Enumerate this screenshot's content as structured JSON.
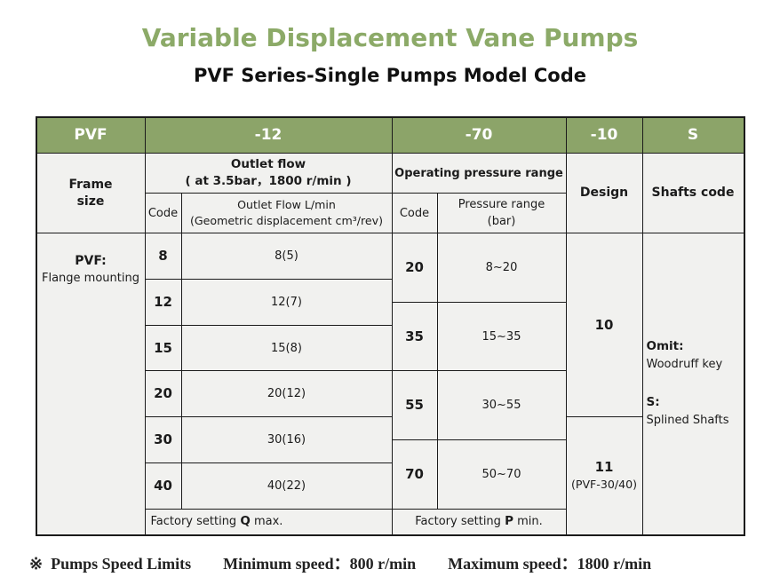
{
  "page": {
    "title": "Variable Displacement Vane Pumps",
    "subtitle": "PVF Series-Single Pumps Model Code"
  },
  "colors": {
    "title_green": "#8caa68",
    "header_green": "#8ca469",
    "cell_bg": "#f1f1ef",
    "border": "#1b1b1b",
    "header_text": "#ffffff"
  },
  "model_code": {
    "prefix": "PVF",
    "flow_segment": "-12",
    "pressure_segment": "-70",
    "design_segment": "-10",
    "shaft_segment": "S"
  },
  "columns": {
    "frame_size": "Frame\nsize",
    "outlet_flow_title": "Outlet flow\n( at 3.5bar，1800 r/min )",
    "outlet_flow_code": "Code",
    "outlet_flow_desc": "Outlet Flow L/min\n(Geometric displacement cm³/rev)",
    "pressure_title": "Operating pressure range",
    "pressure_code": "Code",
    "pressure_desc": "Pressure range\n(bar)",
    "design": "Design",
    "shafts": "Shafts code"
  },
  "frame": {
    "code_label": "PVF:",
    "description": "Flange mounting"
  },
  "flow_rows": [
    {
      "code": "8",
      "value": "8(5)"
    },
    {
      "code": "12",
      "value": "12(7)"
    },
    {
      "code": "15",
      "value": "15(8)"
    },
    {
      "code": "20",
      "value": "20(12)"
    },
    {
      "code": "30",
      "value": "30(16)"
    },
    {
      "code": "40",
      "value": "40(22)"
    }
  ],
  "pressure_rows": [
    {
      "code": "20",
      "range": "8~20"
    },
    {
      "code": "35",
      "range": "15~35"
    },
    {
      "code": "55",
      "range": "30~55"
    },
    {
      "code": "70",
      "range": "50~70"
    }
  ],
  "design_cells": {
    "d10": "10",
    "d11": "11",
    "d11_note": "(PVF-30/40)"
  },
  "shafts_cell": {
    "omit_label": "Omit:",
    "omit_text": "Woodruff key",
    "s_label": "S:",
    "s_text": "Splined Shafts"
  },
  "factory": {
    "flow": {
      "prefix": "Factory setting ",
      "emph": "Q",
      "suffix": " max."
    },
    "pressure": {
      "prefix": "Factory setting ",
      "emph": "P",
      "suffix": " min."
    }
  },
  "footer": {
    "marker": "※",
    "label": "Pumps Speed Limits",
    "min": "Minimum speed：800 r/min",
    "max": "Maximum speed：1800 r/min"
  }
}
